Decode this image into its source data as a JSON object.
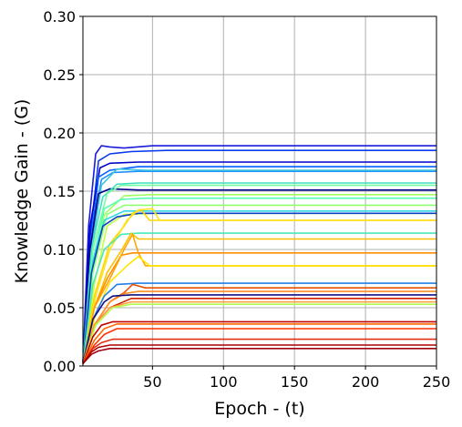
{
  "chart_data": {
    "type": "line",
    "xlabel": "Epoch - (t)",
    "ylabel": "Knowledge Gain - (G)",
    "xlim": [
      1,
      250
    ],
    "ylim": [
      0,
      0.3
    ],
    "xticks": [
      50,
      100,
      150,
      200,
      250
    ],
    "yticks": [
      0.0,
      0.05,
      0.1,
      0.15,
      0.2,
      0.25,
      0.3
    ],
    "xtick_labels": [
      "50",
      "100",
      "150",
      "200",
      "250"
    ],
    "ytick_labels": [
      "0.00",
      "0.05",
      "0.10",
      "0.15",
      "0.20",
      "0.25",
      "0.30"
    ],
    "grid": true,
    "legend": "none",
    "colormap": "jet",
    "series": [
      {
        "color": "#1a1adb",
        "values": [
          [
            1,
            0.002
          ],
          [
            5,
            0.12
          ],
          [
            10,
            0.182
          ],
          [
            14,
            0.189
          ],
          [
            20,
            0.188
          ],
          [
            30,
            0.187
          ],
          [
            50,
            0.189
          ],
          [
            250,
            0.189
          ]
        ]
      },
      {
        "color": "#0a3aef",
        "values": [
          [
            1,
            0.002
          ],
          [
            6,
            0.11
          ],
          [
            12,
            0.176
          ],
          [
            20,
            0.182
          ],
          [
            35,
            0.184
          ],
          [
            60,
            0.185
          ],
          [
            250,
            0.185
          ]
        ]
      },
      {
        "color": "#0000cd",
        "values": [
          [
            1,
            0.002
          ],
          [
            6,
            0.12
          ],
          [
            13,
            0.17
          ],
          [
            20,
            0.174
          ],
          [
            40,
            0.175
          ],
          [
            250,
            0.175
          ]
        ]
      },
      {
        "color": "#0060ff",
        "values": [
          [
            1,
            0.002
          ],
          [
            6,
            0.1
          ],
          [
            12,
            0.162
          ],
          [
            20,
            0.168
          ],
          [
            40,
            0.171
          ],
          [
            250,
            0.171
          ]
        ]
      },
      {
        "color": "#1e90ff",
        "values": [
          [
            1,
            0.002
          ],
          [
            7,
            0.11
          ],
          [
            14,
            0.16
          ],
          [
            22,
            0.166
          ],
          [
            40,
            0.167
          ],
          [
            250,
            0.167
          ]
        ]
      },
      {
        "color": "#3fc8d8",
        "values": [
          [
            1,
            0.002
          ],
          [
            7,
            0.1
          ],
          [
            14,
            0.155
          ],
          [
            25,
            0.169
          ],
          [
            45,
            0.168
          ],
          [
            250,
            0.168
          ]
        ]
      },
      {
        "color": "#00008b",
        "values": [
          [
            1,
            0.002
          ],
          [
            6,
            0.1
          ],
          [
            12,
            0.148
          ],
          [
            20,
            0.152
          ],
          [
            40,
            0.151
          ],
          [
            250,
            0.151
          ]
        ]
      },
      {
        "color": "#40e0c0",
        "values": [
          [
            1,
            0.002
          ],
          [
            7,
            0.1
          ],
          [
            15,
            0.145
          ],
          [
            25,
            0.156
          ],
          [
            40,
            0.157
          ],
          [
            250,
            0.157
          ]
        ]
      },
      {
        "color": "#70ffa0",
        "values": [
          [
            1,
            0.002
          ],
          [
            8,
            0.1
          ],
          [
            18,
            0.148
          ],
          [
            28,
            0.155
          ],
          [
            45,
            0.155
          ],
          [
            250,
            0.155
          ]
        ]
      },
      {
        "color": "#a0ff60",
        "values": [
          [
            1,
            0.002
          ],
          [
            8,
            0.08
          ],
          [
            16,
            0.13
          ],
          [
            30,
            0.146
          ],
          [
            50,
            0.147
          ],
          [
            250,
            0.147
          ]
        ]
      },
      {
        "color": "#50ffb0",
        "values": [
          [
            1,
            0.002
          ],
          [
            8,
            0.09
          ],
          [
            16,
            0.135
          ],
          [
            28,
            0.143
          ],
          [
            45,
            0.144
          ],
          [
            250,
            0.144
          ]
        ]
      },
      {
        "color": "#90ff70",
        "values": [
          [
            1,
            0.002
          ],
          [
            8,
            0.08
          ],
          [
            18,
            0.13
          ],
          [
            30,
            0.138
          ],
          [
            250,
            0.138
          ]
        ]
      },
      {
        "color": "#30d8e8",
        "values": [
          [
            1,
            0.002
          ],
          [
            8,
            0.09
          ],
          [
            16,
            0.125
          ],
          [
            30,
            0.133
          ],
          [
            250,
            0.133
          ]
        ]
      },
      {
        "color": "#c0ff40",
        "values": [
          [
            1,
            0.002
          ],
          [
            9,
            0.07
          ],
          [
            18,
            0.12
          ],
          [
            30,
            0.13
          ],
          [
            50,
            0.131
          ],
          [
            250,
            0.131
          ]
        ]
      },
      {
        "color": "#1040c8",
        "values": [
          [
            1,
            0.002
          ],
          [
            7,
            0.08
          ],
          [
            15,
            0.12
          ],
          [
            25,
            0.128
          ],
          [
            40,
            0.131
          ],
          [
            250,
            0.131
          ]
        ]
      },
      {
        "color": "#ffd800",
        "values": [
          [
            1,
            0.002
          ],
          [
            9,
            0.06
          ],
          [
            20,
            0.105
          ],
          [
            30,
            0.12
          ],
          [
            36,
            0.131
          ],
          [
            42,
            0.134
          ],
          [
            48,
            0.125
          ],
          [
            250,
            0.125
          ]
        ]
      },
      {
        "color": "#ffe020",
        "values": [
          [
            1,
            0.002
          ],
          [
            10,
            0.06
          ],
          [
            20,
            0.1
          ],
          [
            32,
            0.125
          ],
          [
            40,
            0.134
          ],
          [
            50,
            0.135
          ],
          [
            55,
            0.125
          ],
          [
            250,
            0.125
          ]
        ]
      },
      {
        "color": "#4ae8b8",
        "values": [
          [
            1,
            0.002
          ],
          [
            8,
            0.07
          ],
          [
            16,
            0.1
          ],
          [
            28,
            0.113
          ],
          [
            40,
            0.114
          ],
          [
            250,
            0.114
          ]
        ]
      },
      {
        "color": "#ffc000",
        "values": [
          [
            1,
            0.002
          ],
          [
            9,
            0.05
          ],
          [
            18,
            0.08
          ],
          [
            28,
            0.099
          ],
          [
            35,
            0.114
          ],
          [
            40,
            0.109
          ],
          [
            250,
            0.109
          ]
        ]
      },
      {
        "color": "#ff8c00",
        "values": [
          [
            1,
            0.002
          ],
          [
            9,
            0.05
          ],
          [
            18,
            0.075
          ],
          [
            28,
            0.095
          ],
          [
            36,
            0.097
          ],
          [
            250,
            0.097
          ]
        ]
      },
      {
        "color": "#ffa500",
        "values": [
          [
            1,
            0.002
          ],
          [
            9,
            0.05
          ],
          [
            20,
            0.075
          ],
          [
            30,
            0.1
          ],
          [
            36,
            0.113
          ],
          [
            40,
            0.097
          ],
          [
            45,
            0.086
          ],
          [
            250,
            0.086
          ]
        ]
      },
      {
        "color": "#ffe600",
        "values": [
          [
            1,
            0.002
          ],
          [
            10,
            0.045
          ],
          [
            20,
            0.072
          ],
          [
            32,
            0.086
          ],
          [
            40,
            0.094
          ],
          [
            48,
            0.086
          ],
          [
            250,
            0.086
          ]
        ]
      },
      {
        "color": "#2080e8",
        "values": [
          [
            1,
            0.002
          ],
          [
            8,
            0.04
          ],
          [
            16,
            0.06
          ],
          [
            25,
            0.07
          ],
          [
            40,
            0.071
          ],
          [
            250,
            0.071
          ]
        ]
      },
      {
        "color": "#e85000",
        "values": [
          [
            1,
            0.002
          ],
          [
            9,
            0.035
          ],
          [
            20,
            0.055
          ],
          [
            30,
            0.063
          ],
          [
            36,
            0.07
          ],
          [
            45,
            0.067
          ],
          [
            250,
            0.067
          ]
        ]
      },
      {
        "color": "#ff9020",
        "values": [
          [
            1,
            0.002
          ],
          [
            9,
            0.035
          ],
          [
            20,
            0.055
          ],
          [
            30,
            0.062
          ],
          [
            40,
            0.064
          ],
          [
            250,
            0.064
          ]
        ]
      },
      {
        "color": "#101080",
        "values": [
          [
            1,
            0.002
          ],
          [
            8,
            0.04
          ],
          [
            16,
            0.055
          ],
          [
            22,
            0.06
          ],
          [
            35,
            0.061
          ],
          [
            250,
            0.061
          ]
        ]
      },
      {
        "color": "#d02000",
        "values": [
          [
            1,
            0.002
          ],
          [
            9,
            0.035
          ],
          [
            20,
            0.05
          ],
          [
            35,
            0.058
          ],
          [
            250,
            0.058
          ]
        ]
      },
      {
        "color": "#ffa040",
        "values": [
          [
            1,
            0.002
          ],
          [
            9,
            0.035
          ],
          [
            20,
            0.05
          ],
          [
            35,
            0.055
          ],
          [
            250,
            0.055
          ]
        ]
      },
      {
        "color": "#b0ff50",
        "values": [
          [
            1,
            0.002
          ],
          [
            10,
            0.035
          ],
          [
            22,
            0.05
          ],
          [
            35,
            0.053
          ],
          [
            250,
            0.053
          ]
        ]
      },
      {
        "color": "#c00000",
        "values": [
          [
            1,
            0.002
          ],
          [
            8,
            0.025
          ],
          [
            14,
            0.035
          ],
          [
            22,
            0.038
          ],
          [
            250,
            0.038
          ]
        ]
      },
      {
        "color": "#ff6a00",
        "values": [
          [
            1,
            0.002
          ],
          [
            9,
            0.022
          ],
          [
            16,
            0.032
          ],
          [
            25,
            0.036
          ],
          [
            250,
            0.036
          ]
        ]
      },
      {
        "color": "#ff3000",
        "values": [
          [
            1,
            0.002
          ],
          [
            9,
            0.018
          ],
          [
            16,
            0.027
          ],
          [
            25,
            0.032
          ],
          [
            250,
            0.032
          ]
        ]
      },
      {
        "color": "#e03010",
        "values": [
          [
            1,
            0.002
          ],
          [
            8,
            0.015
          ],
          [
            14,
            0.02
          ],
          [
            22,
            0.023
          ],
          [
            250,
            0.023
          ]
        ]
      },
      {
        "color": "#b00000",
        "values": [
          [
            1,
            0.002
          ],
          [
            7,
            0.012
          ],
          [
            12,
            0.016
          ],
          [
            20,
            0.018
          ],
          [
            250,
            0.018
          ]
        ]
      },
      {
        "color": "#a00010",
        "values": [
          [
            1,
            0.002
          ],
          [
            7,
            0.01
          ],
          [
            12,
            0.013
          ],
          [
            20,
            0.015
          ],
          [
            250,
            0.015
          ]
        ]
      }
    ]
  }
}
